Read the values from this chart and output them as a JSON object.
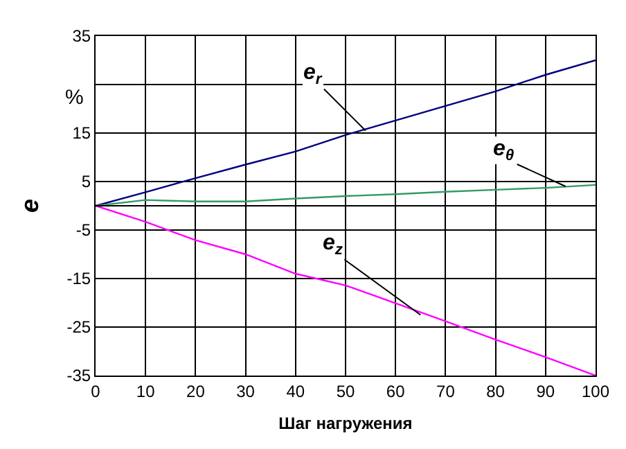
{
  "chart_data": {
    "type": "line",
    "xlabel": "Шаг нагружения",
    "ylabel": "e",
    "x": [
      0,
      10,
      20,
      30,
      40,
      50,
      60,
      70,
      80,
      90,
      100
    ],
    "series": [
      {
        "color": "#000080",
        "values": [
          0,
          2.8,
          5.7,
          8.5,
          11.2,
          14.6,
          17.6,
          20.6,
          23.6,
          27,
          30
        ]
      },
      {
        "color": "#339966",
        "values": [
          0,
          1.2,
          0.9,
          0.9,
          1.5,
          2.0,
          2.4,
          2.9,
          3.3,
          3.7,
          4.3
        ]
      },
      {
        "color": "#ff00ff",
        "values": [
          0,
          -3.3,
          -7.1,
          -10,
          -14,
          -16.4,
          -20.1,
          -23.8,
          -27.6,
          -31.2,
          -35
        ]
      }
    ],
    "xlim": [
      0,
      100
    ],
    "xticks": [
      0,
      10,
      20,
      30,
      40,
      50,
      60,
      70,
      80,
      90,
      100
    ],
    "ylim": [
      -35,
      35
    ],
    "yticks": [
      35,
      {
        "value": 25,
        "label": null
      },
      15,
      5,
      -5,
      -15,
      -25,
      -35
    ],
    "ref_lines": [
      {
        "axis": "y",
        "value": 0,
        "color": "#000000"
      }
    ],
    "annotations": [
      "%",
      {
        "text": "e$_{r}$",
        "x": 54,
        "y": 15.5
      },
      {
        "text": "e$_{θ}$",
        "x": 94,
        "y": 4
      },
      {
        "text": "e$_{z}$",
        "x": 65,
        "y": -22.5
      }
    ],
    "grid": true,
    "marker": "none",
    "line_style": "solid"
  }
}
